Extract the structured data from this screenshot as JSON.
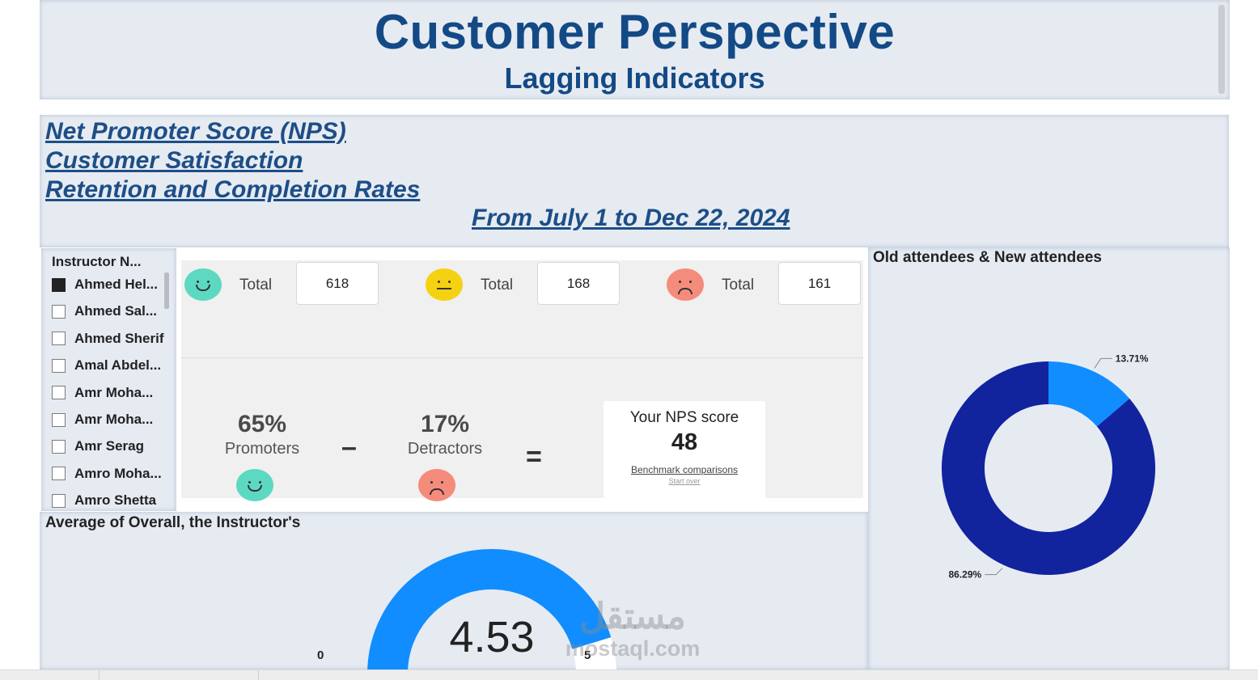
{
  "header": {
    "title": "Customer Perspective",
    "subtitle": "Lagging Indicators"
  },
  "links": {
    "nps": "Net Promoter Score (NPS)",
    "satisfaction": "Customer Satisfaction",
    "retention": "Retention and Completion Rates",
    "date_range": "From July 1 to Dec 22, 2024"
  },
  "slicer": {
    "title": "Instructor N...",
    "items": [
      {
        "label": "Ahmed Hel...",
        "checked": true
      },
      {
        "label": "Ahmed Sal...",
        "checked": false
      },
      {
        "label": "Ahmed Sherif",
        "checked": false
      },
      {
        "label": "Amal Abdel...",
        "checked": false
      },
      {
        "label": "Amr Moha...",
        "checked": false
      },
      {
        "label": "Amr Moha...",
        "checked": false
      },
      {
        "label": "Amr Serag",
        "checked": false
      },
      {
        "label": "Amro Moha...",
        "checked": false
      },
      {
        "label": "Amro Shetta",
        "checked": false
      }
    ]
  },
  "nps": {
    "totals": [
      {
        "label": "Total",
        "value": "618",
        "face": "happy",
        "color": "#5dd9c1"
      },
      {
        "label": "Total",
        "value": "168",
        "face": "neutral",
        "color": "#f5d211"
      },
      {
        "label": "Total",
        "value": "161",
        "face": "sad",
        "color": "#f58c7b"
      }
    ],
    "promoters_pct": "65%",
    "promoters_label": "Promoters",
    "minus": "–",
    "detractors_pct": "17%",
    "detractors_label": "Detractors",
    "equals": "=",
    "score_title": "Your NPS score",
    "score_value": "48",
    "benchmark_link": "Benchmark comparisons",
    "start_over_link": "Start over"
  },
  "gauge": {
    "title": "Average of Overall, the Instructor's",
    "value": 4.53,
    "value_label": "4.53",
    "min": 0,
    "max": 5,
    "min_label": "0",
    "max_label": "5",
    "color": "#118dff"
  },
  "donut": {
    "title": "Old attendees & New attendees",
    "color_dark": "#12239e",
    "color_light": "#118dff"
  },
  "chart_data": {
    "type": "pie",
    "donut": true,
    "categories": [
      "",
      ""
    ],
    "values": [
      13.71,
      86.29
    ],
    "labels": [
      "13.71%",
      "86.29%"
    ],
    "colors": [
      "#118dff",
      "#12239e"
    ]
  },
  "watermark": {
    "arabic": "مستقل",
    "latin": "mostaql.com"
  }
}
